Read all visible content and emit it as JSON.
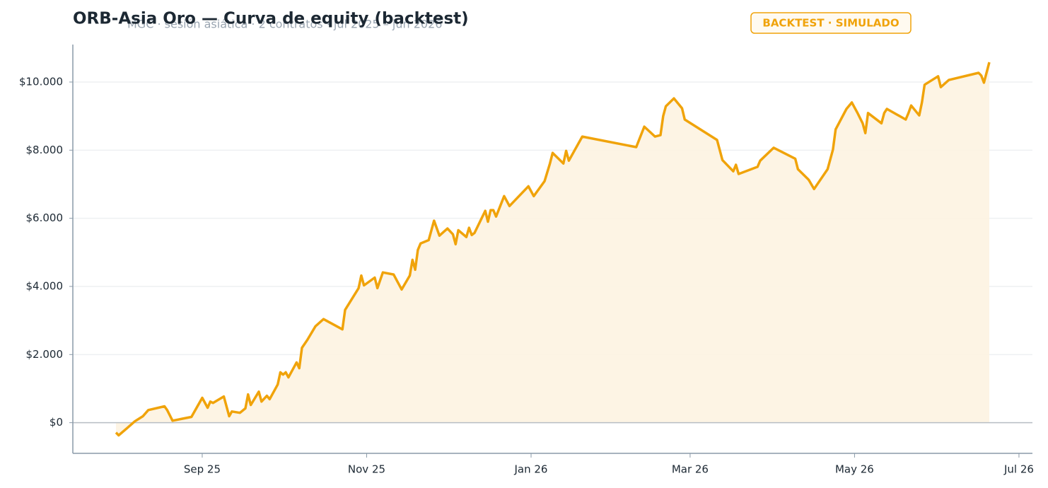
{
  "chart_data": {
    "type": "line",
    "title": "ORB-Asia Oro — Curva de equity (backtest)",
    "subtitle": "MGC · sesión asiática · 2 contratos · jul 2025 – jun 2026",
    "badge": "BACKTEST · SIMULADO",
    "color": "#f0a30a",
    "fill_color": "#fdf3e1",
    "grid": true,
    "x": [
      -32,
      -31,
      -28,
      -25,
      -22,
      -20,
      -14,
      -13,
      -11,
      -4,
      0,
      2,
      3,
      4,
      8,
      10,
      11,
      14,
      16,
      17,
      18,
      21,
      22,
      24,
      25,
      28,
      29,
      30,
      31,
      32,
      35,
      36,
      37,
      39,
      42,
      45,
      52,
      53,
      58,
      59,
      60,
      64,
      65,
      67,
      71,
      74,
      77,
      78,
      79,
      80,
      81,
      84,
      86,
      88,
      91,
      93,
      94,
      95,
      98,
      99,
      100,
      101,
      105,
      106,
      107,
      108,
      109,
      112,
      114,
      121,
      123,
      127,
      129,
      130,
      134,
      135,
      136,
      141,
      161,
      164,
      168,
      170,
      171,
      172,
      175,
      178,
      179,
      191,
      193,
      197,
      198,
      199,
      206,
      207,
      212,
      220,
      221,
      225,
      227,
      232,
      234,
      235,
      239,
      241,
      243,
      245,
      246,
      247,
      252,
      253,
      254,
      261,
      262,
      263,
      266,
      267,
      268,
      273,
      274,
      277,
      288,
      289,
      290,
      292
    ],
    "values": [
      -290,
      -370,
      -170,
      40,
      190,
      370,
      480,
      370,
      60,
      170,
      730,
      440,
      620,
      580,
      770,
      190,
      330,
      290,
      420,
      830,
      520,
      910,
      620,
      790,
      690,
      1120,
      1480,
      1410,
      1480,
      1330,
      1770,
      1600,
      2200,
      2430,
      2830,
      3040,
      2740,
      3310,
      3950,
      4320,
      4030,
      4260,
      3950,
      4410,
      4350,
      3910,
      4320,
      4780,
      4490,
      5070,
      5260,
      5360,
      5930,
      5490,
      5700,
      5530,
      5240,
      5650,
      5450,
      5720,
      5510,
      5570,
      6220,
      5900,
      6240,
      6240,
      6050,
      6650,
      6360,
      6940,
      6650,
      7090,
      7610,
      7920,
      7610,
      7980,
      7690,
      8400,
      8090,
      8690,
      8400,
      8440,
      9000,
      9290,
      9520,
      9230,
      8900,
      8300,
      7710,
      7380,
      7570,
      7300,
      7510,
      7690,
      8070,
      7750,
      7440,
      7130,
      6860,
      7440,
      8020,
      8610,
      9210,
      9400,
      9110,
      8790,
      8500,
      9090,
      8790,
      9090,
      9210,
      8900,
      9090,
      9310,
      9020,
      9400,
      9920,
      10170,
      9850,
      10060,
      10270,
      10190,
      9980,
      10580
    ],
    "xlim": [
      -48,
      308
    ],
    "xticks": [
      {
        "value": 0,
        "label": "Sep 25"
      },
      {
        "value": 61,
        "label": "Nov 25"
      },
      {
        "value": 122,
        "label": "Jan 26"
      },
      {
        "value": 181,
        "label": "Mar 26"
      },
      {
        "value": 242,
        "label": "May 26"
      },
      {
        "value": 303,
        "label": "Jul 26"
      }
    ],
    "ylim": [
      -900,
      11100
    ],
    "yticks": [
      {
        "value": 0,
        "label": "$0"
      },
      {
        "value": 2000,
        "label": "$2.000"
      },
      {
        "value": 4000,
        "label": "$4.000"
      },
      {
        "value": 6000,
        "label": "$6.000"
      },
      {
        "value": 8000,
        "label": "$8.000"
      },
      {
        "value": 10000,
        "label": "$10.000"
      }
    ]
  }
}
